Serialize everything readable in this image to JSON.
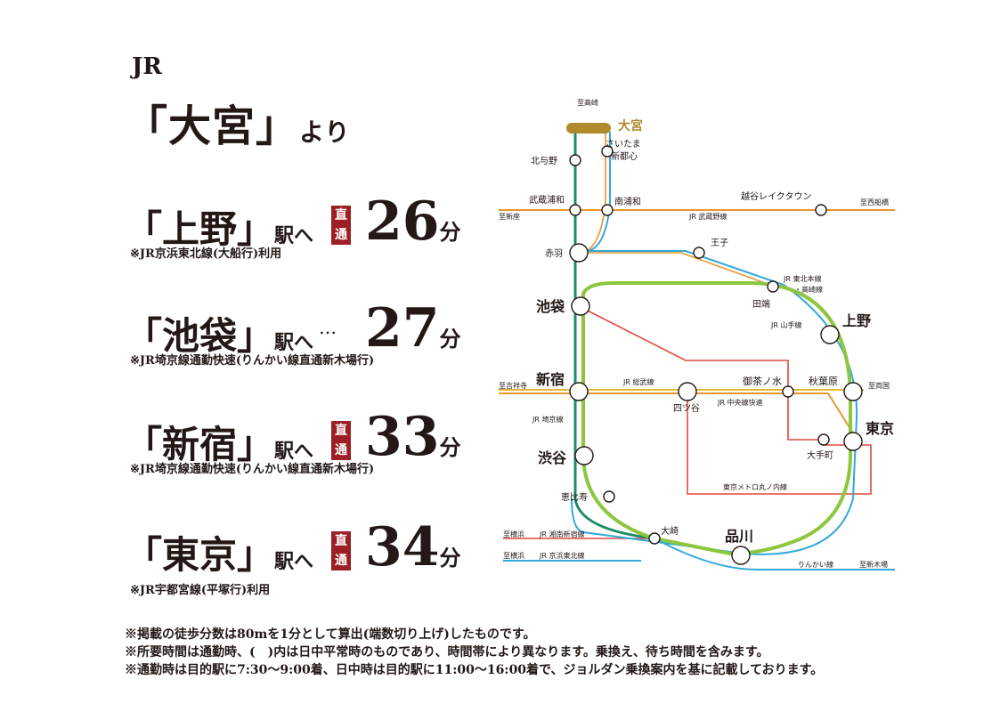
{
  "origin": {
    "prefix": "JR",
    "station": "「大宮」",
    "suffix": "より"
  },
  "destinations": [
    {
      "name": "「上野」",
      "eki": "駅へ",
      "badge": "直通",
      "minutes": "26",
      "unit": "分",
      "note": "※JR京浜東北線(大船行)利用"
    },
    {
      "name": "「池袋」",
      "eki": "駅へ",
      "dots": "…",
      "minutes": "27",
      "unit": "分",
      "note": "※JR埼京線通勤快速(りんかい線直通新木場行)"
    },
    {
      "name": "「新宿」",
      "eki": "駅へ",
      "badge": "直通",
      "minutes": "33",
      "unit": "分",
      "note": "※JR埼京線通勤快速(りんかい線直通新木場行)"
    },
    {
      "name": "「東京」",
      "eki": "駅へ",
      "badge": "直通",
      "minutes": "34",
      "unit": "分",
      "note": "※JR宇都宮線(平塚行)利用"
    }
  ],
  "footnotes": [
    "※掲載の徒歩分数は80mを1分として算出(端数切り上げ)したものです。",
    "※所要時間は通勤時、(　)内は日中平常時のものであり、時間帯により異なります。乗換え、待ち時間を含みます。",
    "※通勤時は目的駅に7:30〜9:00着、日中時は目的駅に11:00〜16:00着で、ジョルダン乗換案内を基に記載しております。"
  ],
  "map": {
    "stations": {
      "omiya": "大宮",
      "saitama_shintoshin": [
        "さいたま",
        "新都心"
      ],
      "kitayono": "北与野",
      "musashi_urawa": "武蔵浦和",
      "minami_urawa": "南浦和",
      "koshigaya_laketown": "越谷レイクタウン",
      "akabane": "赤羽",
      "oji": "王子",
      "tabata": "田端",
      "ikebukuro": "池袋",
      "ueno": "上野",
      "shinjuku": "新宿",
      "yotsuya": "四ツ谷",
      "ochanomizu": "御茶ノ水",
      "akihabara": "秋葉原",
      "tokyo": "東京",
      "otemachi": "大手町",
      "shibuya": "渋谷",
      "ebisu": "恵比寿",
      "osaki": "大崎",
      "shinagawa": "品川"
    },
    "directions": {
      "takasaki": "至高崎",
      "nishi_funabashi": "至西船橋",
      "shinza": "至新座",
      "ryogoku": "至両国",
      "kitchoji": "至吉祥寺",
      "yokohama1": "至横浜",
      "yokohama2": "至横浜",
      "shinkiba": "至新木場"
    },
    "line_labels": {
      "musashino": "JR 武蔵野線",
      "tohoku_takasaki": [
        "JR 東北本線",
        "・高崎線"
      ],
      "yamanote": "JR 山手線",
      "sobu": "JR 総武線",
      "chuo": "JR 中央線快速",
      "saikyo": "JR 埼京線",
      "marunouchi": "東京メトロ丸ノ内線",
      "shonan": "JR 湘南新宿線",
      "keihin": "JR 京浜東北線",
      "rinkai": "りんかい線"
    },
    "colors": {
      "omiya_bar": "#b08a2c",
      "saikyo": "#1e8b6a",
      "keihin": "#34a8d8",
      "yamanote": "#8dc63f",
      "marunouchi": "#e04a3f",
      "musashino": "#e8962e",
      "sobu": "#e3b83a",
      "badge": "#9b1f24"
    }
  }
}
